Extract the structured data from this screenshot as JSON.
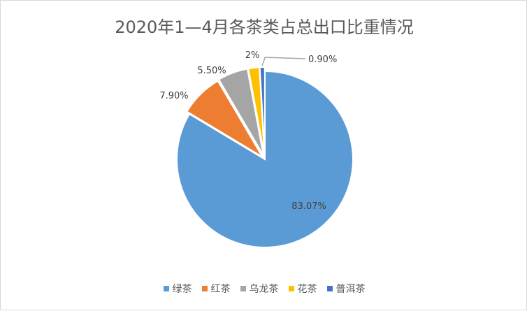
{
  "chart_data": {
    "type": "pie",
    "title": "2020年1—4月各茶类占总出口比重情况",
    "categories": [
      "绿茶",
      "红茶",
      "乌龙茶",
      "花茶",
      "普洱茶"
    ],
    "values": [
      83.07,
      7.9,
      5.5,
      2,
      0.9
    ],
    "labels": [
      "83.07%",
      "7.90%",
      "5.50%",
      "2%",
      "0.90%"
    ],
    "colors": [
      "#5b9bd5",
      "#ed7d31",
      "#a5a5a5",
      "#ffc000",
      "#4472c4"
    ],
    "legend_position": "bottom",
    "start_angle": "12 o'clock, clockwise",
    "exploded": true
  }
}
